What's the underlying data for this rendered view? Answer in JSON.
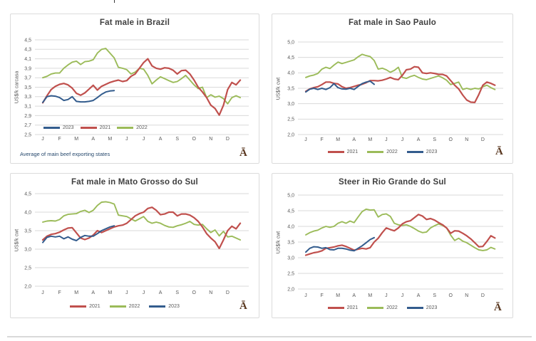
{
  "page": {
    "background": "#ffffff",
    "divider_color": "#d9d9d9"
  },
  "colors": {
    "red_2021": "#C0504D",
    "green_2022": "#9BBB59",
    "blue_2023": "#335C8D",
    "grid": "#DADADA",
    "box_border": "#DBDBDB",
    "title_text": "#3F3F3F",
    "axis_text": "#595959",
    "footnote_text": "#27496D",
    "placeholder_glyph_color": "#5A3820"
  },
  "icons": {
    "missing_image_glyph": "Ā"
  },
  "chart_data": [
    {
      "type": "line",
      "title": "Fat male in Brazil",
      "ylabel": "US$/k carcasa",
      "footnote": "Average  of main beef exporting states",
      "ylim": [
        2.5,
        4.5
      ],
      "ytick_step": 0.2,
      "ytick_labels": [
        "2,5",
        "2,7",
        "2,9",
        "3,1",
        "3,3",
        "3,5",
        "3,7",
        "3,9",
        "4,1",
        "4,3",
        "4,5"
      ],
      "xtick_labels": [
        "J",
        "F",
        "M",
        "A",
        "M",
        "J",
        "J",
        "A",
        "S",
        "O",
        "N",
        "D"
      ],
      "legend": [
        "2023",
        "2021",
        "2022"
      ],
      "legend_position": "inside",
      "points_per_year": 48,
      "series": [
        {
          "name": "2021",
          "color_key": "red_2021",
          "values": [
            3.17,
            3.32,
            3.45,
            3.52,
            3.56,
            3.58,
            3.55,
            3.48,
            3.37,
            3.33,
            3.38,
            3.46,
            3.54,
            3.44,
            3.52,
            3.56,
            3.6,
            3.63,
            3.65,
            3.62,
            3.64,
            3.73,
            3.78,
            3.9,
            4.02,
            4.1,
            3.95,
            3.9,
            3.88,
            3.91,
            3.9,
            3.86,
            3.78,
            3.85,
            3.86,
            3.78,
            3.65,
            3.5,
            3.4,
            3.28,
            3.12,
            3.05,
            2.91,
            3.12,
            3.45,
            3.6,
            3.55,
            3.65
          ]
        },
        {
          "name": "2022",
          "color_key": "green_2022",
          "values": [
            3.7,
            3.73,
            3.78,
            3.8,
            3.8,
            3.9,
            3.97,
            4.03,
            4.05,
            3.98,
            4.04,
            4.05,
            4.08,
            4.22,
            4.3,
            4.32,
            4.22,
            4.12,
            3.92,
            3.9,
            3.87,
            3.78,
            3.82,
            3.9,
            3.88,
            3.75,
            3.57,
            3.65,
            3.72,
            3.68,
            3.64,
            3.6,
            3.62,
            3.68,
            3.75,
            3.65,
            3.55,
            3.47,
            3.5,
            3.28,
            3.34,
            3.29,
            3.31,
            3.26,
            3.15,
            3.28,
            3.32,
            3.28
          ]
        },
        {
          "name": "2023",
          "color_key": "blue_2023",
          "values": [
            3.18,
            3.3,
            3.32,
            3.31,
            3.28,
            3.22,
            3.24,
            3.3,
            3.2,
            3.19,
            3.19,
            3.2,
            3.22,
            3.28,
            3.35,
            3.4,
            3.42,
            3.43
          ]
        }
      ]
    },
    {
      "type": "line",
      "title": "Fat male in Sao Paulo",
      "ylabel": "US$/k cwt",
      "ylim": [
        2.0,
        5.0
      ],
      "ytick_step": 0.5,
      "ytick_labels": [
        "2,0",
        "2,5",
        "3,0",
        "3,5",
        "4,0",
        "4,5",
        "5,0"
      ],
      "xtick_labels": [
        "J",
        "F",
        "M",
        "A",
        "M",
        "J",
        "J",
        "A",
        "S",
        "O",
        "N",
        "D"
      ],
      "legend": [
        "2021",
        "2022",
        "2023"
      ],
      "legend_position": "below",
      "points_per_year": 48,
      "series": [
        {
          "name": "2021",
          "color_key": "red_2021",
          "values": [
            3.4,
            3.48,
            3.52,
            3.55,
            3.62,
            3.7,
            3.7,
            3.66,
            3.64,
            3.55,
            3.5,
            3.52,
            3.56,
            3.6,
            3.63,
            3.68,
            3.75,
            3.75,
            3.74,
            3.76,
            3.8,
            3.85,
            3.8,
            3.78,
            3.92,
            4.1,
            4.12,
            4.2,
            4.18,
            4.0,
            3.98,
            4.0,
            3.98,
            3.95,
            3.95,
            3.9,
            3.75,
            3.6,
            3.48,
            3.28,
            3.12,
            3.05,
            3.04,
            3.3,
            3.6,
            3.7,
            3.66,
            3.6
          ]
        },
        {
          "name": "2022",
          "color_key": "green_2022",
          "values": [
            3.85,
            3.9,
            3.93,
            3.98,
            4.12,
            4.18,
            4.14,
            4.25,
            4.35,
            4.3,
            4.34,
            4.38,
            4.42,
            4.52,
            4.6,
            4.56,
            4.53,
            4.4,
            4.12,
            4.15,
            4.1,
            4.02,
            4.08,
            4.18,
            3.85,
            3.82,
            3.88,
            3.92,
            3.85,
            3.8,
            3.78,
            3.82,
            3.86,
            3.9,
            3.84,
            3.76,
            3.62,
            3.66,
            3.7,
            3.46,
            3.5,
            3.46,
            3.5,
            3.48,
            3.55,
            3.6,
            3.52,
            3.46
          ]
        },
        {
          "name": "2023",
          "color_key": "blue_2023",
          "values": [
            3.38,
            3.47,
            3.5,
            3.46,
            3.5,
            3.46,
            3.52,
            3.65,
            3.52,
            3.48,
            3.47,
            3.5,
            3.46,
            3.56,
            3.65,
            3.7,
            3.73,
            3.63
          ]
        }
      ]
    },
    {
      "type": "line",
      "title": "Fat male in Mato Grosso do Sul",
      "ylabel": "US$/k cwt",
      "ylim": [
        2.0,
        4.5
      ],
      "ytick_step": 0.5,
      "ytick_labels": [
        "2,0",
        "2,5",
        "3,0",
        "3,5",
        "4,0",
        "4,5"
      ],
      "xtick_labels": [
        "J",
        "F",
        "M",
        "A",
        "M",
        "J",
        "J",
        "A",
        "S",
        "O",
        "N",
        "D"
      ],
      "legend": [
        "2021",
        "2022",
        "2023"
      ],
      "legend_position": "below",
      "points_per_year": 48,
      "series": [
        {
          "name": "2021",
          "color_key": "red_2021",
          "values": [
            3.25,
            3.35,
            3.4,
            3.42,
            3.46,
            3.52,
            3.57,
            3.58,
            3.44,
            3.3,
            3.26,
            3.3,
            3.38,
            3.5,
            3.45,
            3.5,
            3.55,
            3.6,
            3.63,
            3.65,
            3.7,
            3.8,
            3.9,
            3.96,
            4.0,
            4.1,
            4.13,
            4.05,
            3.93,
            3.95,
            4.0,
            4.0,
            3.9,
            3.95,
            3.95,
            3.92,
            3.85,
            3.75,
            3.6,
            3.42,
            3.3,
            3.2,
            3.02,
            3.25,
            3.5,
            3.62,
            3.55,
            3.7
          ]
        },
        {
          "name": "2022",
          "color_key": "green_2022",
          "values": [
            3.73,
            3.76,
            3.77,
            3.76,
            3.8,
            3.9,
            3.94,
            3.95,
            3.96,
            4.02,
            4.05,
            3.99,
            4.05,
            4.18,
            4.27,
            4.28,
            4.26,
            4.22,
            3.92,
            3.9,
            3.88,
            3.82,
            3.76,
            3.82,
            3.88,
            3.75,
            3.7,
            3.73,
            3.7,
            3.64,
            3.6,
            3.59,
            3.63,
            3.66,
            3.7,
            3.75,
            3.67,
            3.65,
            3.67,
            3.55,
            3.45,
            3.52,
            3.36,
            3.48,
            3.33,
            3.35,
            3.3,
            3.25
          ]
        },
        {
          "name": "2023",
          "color_key": "blue_2023",
          "values": [
            3.18,
            3.32,
            3.35,
            3.33,
            3.35,
            3.28,
            3.33,
            3.27,
            3.23,
            3.32,
            3.37,
            3.35,
            3.35,
            3.42,
            3.5,
            3.55,
            3.6,
            3.63
          ]
        }
      ]
    },
    {
      "type": "line",
      "title": "Steer  in Rio Grande do Sul",
      "ylabel": "US$/k cwt",
      "ylim": [
        2.0,
        5.0
      ],
      "ytick_step": 0.5,
      "ytick_labels": [
        "2,0",
        "2,5",
        "3,0",
        "3,5",
        "4,0",
        "4,5",
        "5,0"
      ],
      "xtick_labels": [
        "J",
        "F",
        "M",
        "A",
        "M",
        "J",
        "J",
        "A",
        "S",
        "O",
        "N",
        "D"
      ],
      "legend": [
        "2021",
        "2022",
        "2023"
      ],
      "legend_position": "below",
      "points_per_year": 48,
      "series": [
        {
          "name": "2021",
          "color_key": "red_2021",
          "values": [
            3.08,
            3.12,
            3.16,
            3.18,
            3.22,
            3.3,
            3.32,
            3.34,
            3.38,
            3.4,
            3.36,
            3.3,
            3.24,
            3.27,
            3.3,
            3.28,
            3.32,
            3.5,
            3.62,
            3.8,
            3.95,
            3.9,
            3.86,
            3.95,
            4.08,
            4.15,
            4.18,
            4.28,
            4.38,
            4.33,
            4.22,
            4.25,
            4.2,
            4.12,
            4.05,
            3.95,
            3.78,
            3.86,
            3.85,
            3.78,
            3.7,
            3.6,
            3.48,
            3.35,
            3.36,
            3.52,
            3.7,
            3.63
          ]
        },
        {
          "name": "2022",
          "color_key": "green_2022",
          "values": [
            3.73,
            3.8,
            3.85,
            3.88,
            3.95,
            4.0,
            3.97,
            4.0,
            4.1,
            4.15,
            4.1,
            4.17,
            4.12,
            4.3,
            4.47,
            4.55,
            4.52,
            4.53,
            4.3,
            4.38,
            4.4,
            4.32,
            4.1,
            4.05,
            4.03,
            4.05,
            4.0,
            3.93,
            3.85,
            3.8,
            3.82,
            3.95,
            4.02,
            4.08,
            4.03,
            3.95,
            3.72,
            3.55,
            3.62,
            3.53,
            3.48,
            3.4,
            3.32,
            3.25,
            3.23,
            3.25,
            3.33,
            3.28
          ]
        },
        {
          "name": "2023",
          "color_key": "blue_2023",
          "values": [
            3.18,
            3.3,
            3.35,
            3.34,
            3.3,
            3.32,
            3.26,
            3.25,
            3.3,
            3.3,
            3.28,
            3.24,
            3.22,
            3.3,
            3.38,
            3.48,
            3.58,
            3.64
          ]
        }
      ]
    }
  ]
}
